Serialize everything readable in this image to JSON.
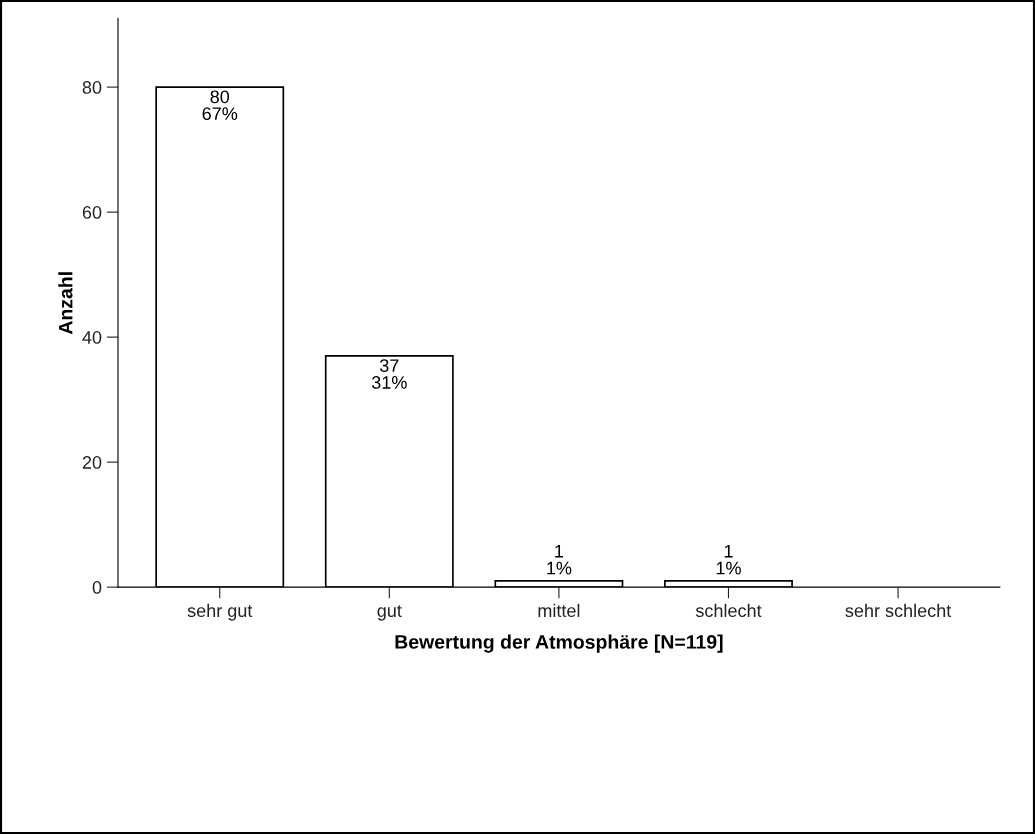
{
  "chart_data": {
    "type": "bar",
    "xlabel": "Bewertung der Atmosphäre [N=119]",
    "ylabel": "Anzahl",
    "categories": [
      "sehr gut",
      "gut",
      "mittel",
      "schlecht",
      "sehr schlecht"
    ],
    "values": [
      80,
      37,
      1,
      1,
      0
    ],
    "value_labels": [
      "80\n67%",
      "37\n31%",
      "1\n1%",
      "1\n1%",
      null
    ],
    "color": "#ffffff",
    "ylim": [
      0,
      91
    ],
    "yticks": [
      0,
      20,
      40,
      60,
      80
    ],
    "grid": false,
    "legend": false
  }
}
